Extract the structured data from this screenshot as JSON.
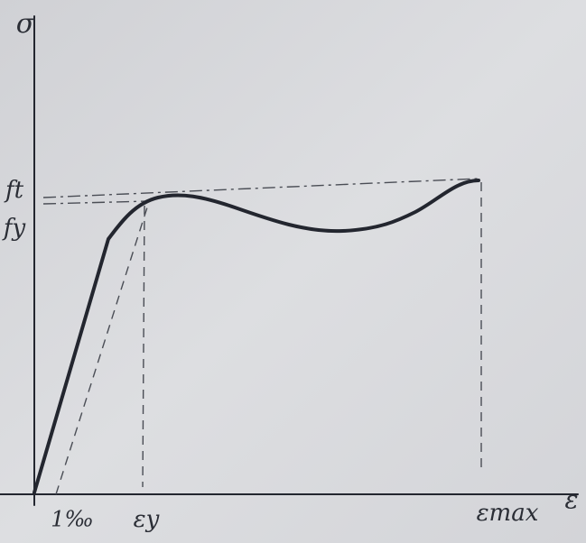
{
  "axes": {
    "y_label": "σ",
    "x_label": "ε"
  },
  "stress_levels": [
    "ft",
    "fy"
  ],
  "strain_marks": [
    "1‰",
    "εy",
    "εmax"
  ]
}
